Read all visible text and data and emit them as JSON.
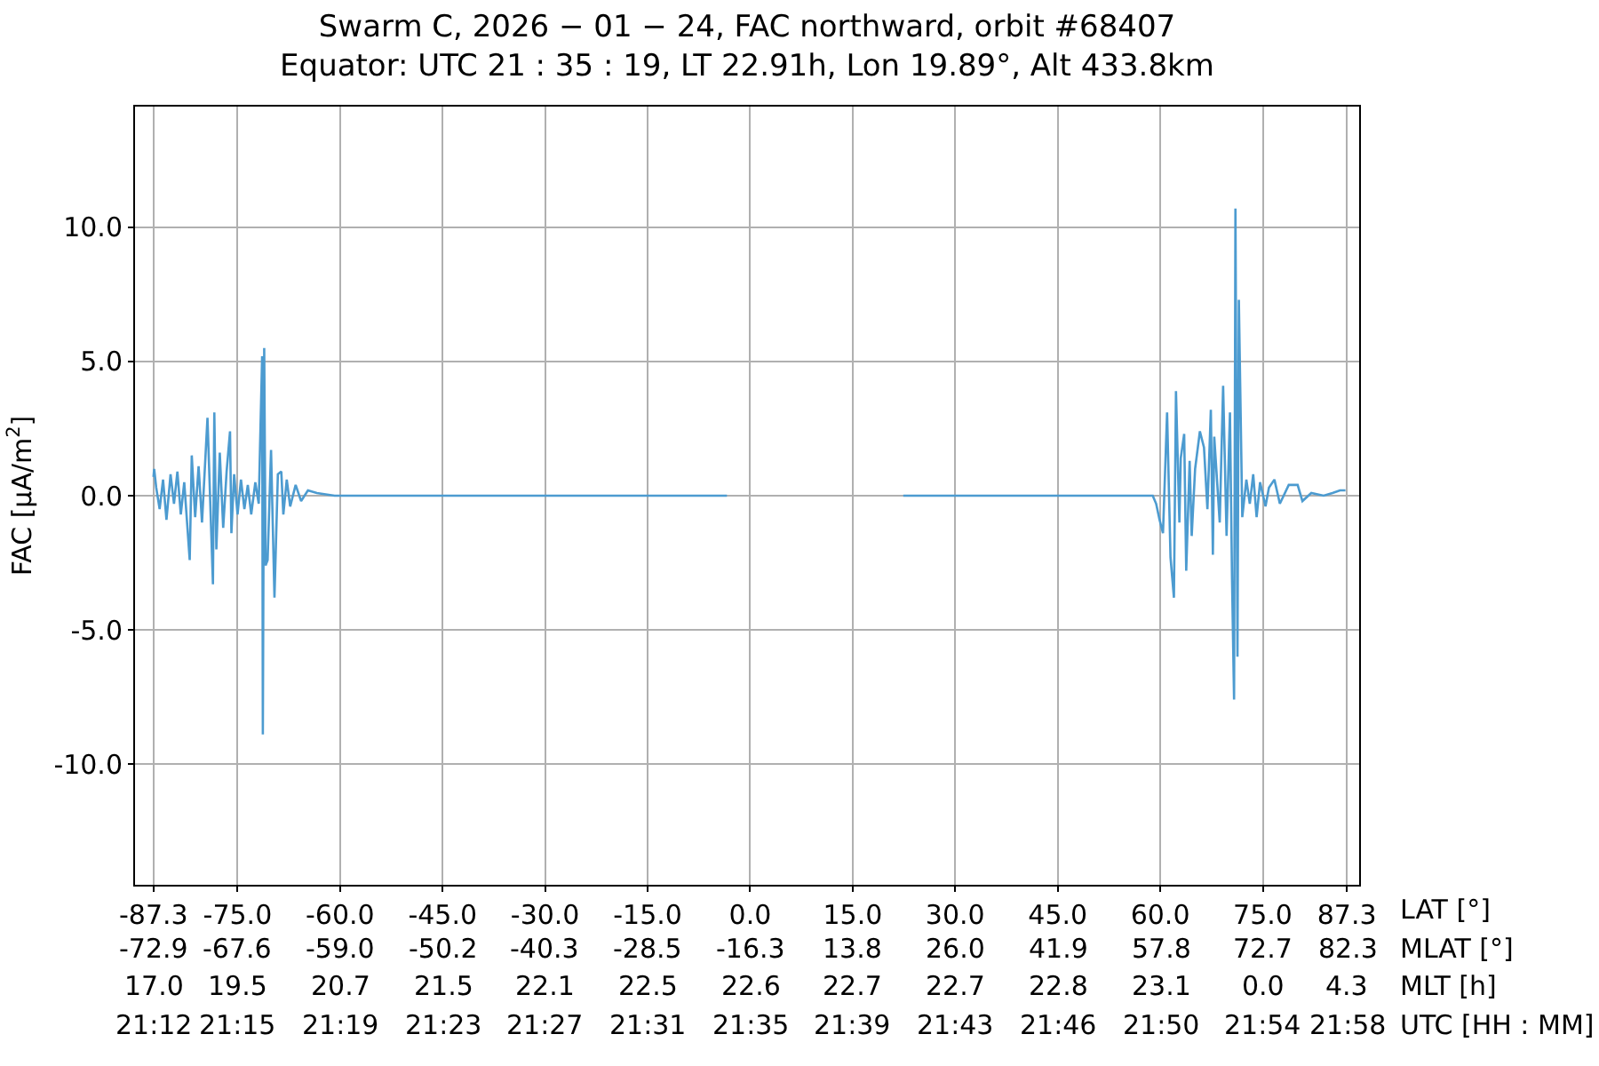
{
  "chart_data": {
    "type": "line",
    "title": "Swarm C, 2026 − 01 − 24, FAC northward, orbit #68407\nEquator: UTC 21 : 35 : 19, LT 22.91h, Lon 19.89°, Alt 433.8km",
    "ylabel": "FAC [μA/m$^{2}$]",
    "annotations": [
      "LAT [°]",
      "MLAT [°]",
      "MLT [h]",
      "UTC [HH : MM]",
      "-72.9",
      "-67.6",
      "-59.0",
      "-50.2",
      "-40.3",
      "-28.5",
      "-16.3",
      "13.8",
      "26.0",
      "41.9",
      "57.8",
      "72.7",
      "82.3",
      "17.0",
      "19.5",
      "20.7",
      "21.5",
      "22.1",
      "22.5",
      "22.6",
      "22.7",
      "22.7",
      "22.8",
      "23.1",
      "0.0",
      "4.3",
      "21:12",
      "21:15",
      "21:19",
      "21:23",
      "21:27",
      "21:31",
      "21:35",
      "21:39",
      "21:43",
      "21:46",
      "21:50",
      "21:54",
      "21:58"
    ],
    "x": [
      -87.3,
      -87.2,
      -86.9,
      -86.4,
      -85.9,
      -85.4,
      -84.8,
      -84.3,
      -83.8,
      -83.3,
      -82.8,
      -82.0,
      -81.7,
      -81.2,
      -80.7,
      -80.2,
      -79.4,
      -78.6,
      -78.4,
      -78.1,
      -77.6,
      -77.1,
      -76.6,
      -76.1,
      -75.9,
      -75.5,
      -75.0,
      -74.5,
      -74.0,
      -73.5,
      -73.0,
      -72.4,
      -71.9,
      -71.4,
      -71.3,
      -71.1,
      -70.9,
      -70.6,
      -70.1,
      -69.6,
      -69.1,
      -68.6,
      -68.3,
      -67.8,
      -67.3,
      -66.5,
      -65.7,
      -64.7,
      -63.4,
      -60.8,
      -51.8,
      -41.4,
      -31.1,
      -20.7,
      -10.4,
      -3.4,
      9.5,
      22.4,
      33.6,
      46.5,
      58.9,
      59.4,
      59.9,
      60.4,
      61.0,
      61.5,
      62.0,
      62.3,
      62.8,
      63.0,
      63.5,
      63.8,
      64.3,
      64.6,
      65.1,
      65.8,
      66.4,
      66.9,
      67.4,
      67.7,
      67.9,
      68.7,
      69.2,
      69.7,
      70.2,
      70.5,
      70.8,
      71.0,
      71.3,
      71.5,
      72.0,
      72.6,
      73.1,
      73.6,
      74.1,
      74.6,
      75.4,
      75.9,
      76.7,
      77.5,
      78.8,
      80.1,
      80.8,
      82.1,
      83.9,
      85.2,
      86.3,
      87.1
    ],
    "series": [
      {
        "color": "#4c9bd0",
        "values": [
          0.7,
          1.0,
          0.3,
          -0.5,
          0.6,
          -0.9,
          0.8,
          -0.3,
          0.9,
          -0.7,
          0.5,
          -2.4,
          1.5,
          -0.8,
          1.1,
          -1.0,
          2.9,
          -3.3,
          3.1,
          -2.0,
          1.6,
          -1.2,
          0.9,
          2.4,
          -1.4,
          0.8,
          -0.7,
          0.6,
          -0.5,
          0.4,
          -0.7,
          0.5,
          -0.3,
          5.2,
          -8.9,
          5.5,
          -2.6,
          -2.4,
          1.7,
          -3.8,
          0.8,
          0.9,
          -0.7,
          0.6,
          -0.4,
          0.4,
          -0.2,
          0.2,
          0.1,
          0.0,
          0.0,
          0.0,
          0.0,
          0.0,
          0.0,
          0.0,
          null,
          0.0,
          0.0,
          0.0,
          0.0,
          -0.3,
          -0.9,
          -1.4,
          3.1,
          -2.3,
          -3.8,
          3.9,
          -1.0,
          1.4,
          2.3,
          -2.8,
          1.3,
          -1.5,
          1.0,
          2.4,
          1.8,
          -0.5,
          3.2,
          -2.2,
          2.2,
          -1.0,
          4.1,
          -1.5,
          3.1,
          -3.1,
          -7.6,
          10.7,
          -6.0,
          7.3,
          -0.8,
          0.6,
          -0.3,
          0.8,
          -0.8,
          0.5,
          -0.4,
          0.3,
          0.6,
          -0.3,
          0.4,
          0.4,
          -0.2,
          0.1,
          0.0,
          0.1,
          0.2,
          0.2
        ]
      }
    ],
    "xlim": [
      -90.0,
      89.1
    ],
    "xticks": [
      {
        "value": -87.3,
        "label": "-87.3"
      },
      {
        "value": -75.0,
        "label": "-75.0"
      },
      {
        "value": -60.0,
        "label": "-60.0"
      },
      {
        "value": -45.0,
        "label": "-45.0"
      },
      {
        "value": -30.0,
        "label": "-30.0"
      },
      {
        "value": -15.0,
        "label": "-15.0"
      },
      {
        "value": 0.0,
        "label": "0.0"
      },
      {
        "value": 15.0,
        "label": "15.0"
      },
      {
        "value": 30.0,
        "label": "30.0"
      },
      {
        "value": 45.0,
        "label": "45.0"
      },
      {
        "value": 60.0,
        "label": "60.0"
      },
      {
        "value": 75.0,
        "label": "75.0"
      },
      {
        "value": 87.3,
        "label": "87.3"
      }
    ],
    "ylim": [
      -14.5,
      14.5
    ],
    "yticks": [
      {
        "value": -10,
        "label": "-10.0"
      },
      {
        "value": -5,
        "label": "-5.0"
      },
      {
        "value": 0,
        "label": "0.0"
      },
      {
        "value": 5,
        "label": "5.0"
      },
      {
        "value": 10,
        "label": "10.0"
      }
    ],
    "grid": true,
    "marker": "none",
    "line_style": "solid"
  }
}
